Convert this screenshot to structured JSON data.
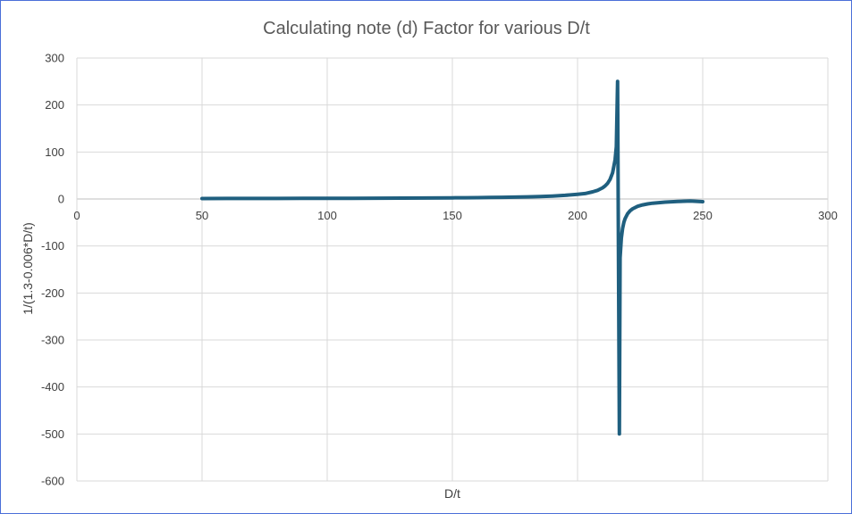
{
  "chart_data": {
    "type": "scatter",
    "title": "Calculating note (d) Factor for various D/t",
    "xlabel": "D/t",
    "ylabel": "1/(1.3-0.006*D/t)",
    "xlim": [
      0,
      300
    ],
    "ylim": [
      -600,
      300
    ],
    "xticks": [
      0,
      50,
      100,
      150,
      200,
      250,
      300
    ],
    "yticks": [
      300,
      200,
      100,
      0,
      -100,
      -200,
      -300,
      -400,
      -500,
      -600
    ],
    "xtick_labels": [
      "0",
      "50",
      "100",
      "150",
      "200",
      "250",
      "300"
    ],
    "ytick_labels": [
      "300",
      "200",
      "100",
      "0",
      "-100",
      "-200",
      "-300",
      "-400",
      "-500",
      "-600"
    ],
    "grid": true,
    "legend": "none",
    "line_color": "#1f5f7f",
    "series": [
      {
        "x": [
          50,
          60,
          70,
          80,
          90,
          100,
          110,
          120,
          130,
          140,
          150,
          155,
          160,
          165,
          170,
          175,
          180,
          185,
          190,
          195,
          200,
          203,
          206,
          208,
          210,
          211,
          212,
          213,
          214,
          215,
          215.5,
          216,
          216.7,
          217,
          217.5,
          218,
          218.5,
          219,
          220,
          221,
          222,
          224,
          226,
          228,
          230,
          235,
          240,
          245,
          250
        ],
        "y": [
          1,
          1.08,
          1.14,
          1.21,
          1.3,
          1.43,
          1.52,
          1.72,
          1.92,
          2.17,
          2.5,
          2.7,
          2.94,
          3.23,
          3.57,
          4,
          4.55,
          5.26,
          6.25,
          7.69,
          10,
          11.6,
          15.15,
          18.5,
          23.8,
          27.8,
          33.3,
          41.7,
          55.6,
          83.3,
          111,
          250,
          -500,
          -125,
          -83.3,
          -62.5,
          -50,
          -41.7,
          -31.25,
          -25,
          -20.8,
          -15.6,
          -12.5,
          -10.4,
          -8.93,
          -6.67,
          -5.26,
          -4.35,
          -5.7
        ]
      }
    ]
  }
}
